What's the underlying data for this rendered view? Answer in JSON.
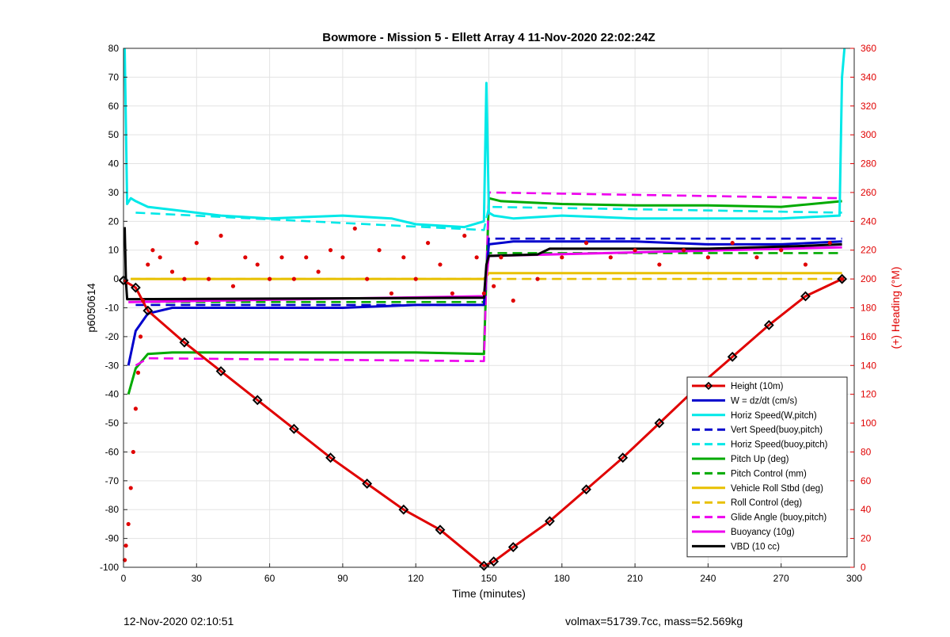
{
  "footer": {
    "timestamp": "12-Nov-2020 02:10:51",
    "vol_mass": "volmax=51739.7cc, mass=52.569kg"
  },
  "chart_data": {
    "type": "line",
    "title": "Bowmore - Mission 5 - Ellett Array 4 11-Nov-2020 22:02:24Z",
    "xlabel": "Time (minutes)",
    "ylabel": "p6050614",
    "y2label": "(+) Heading (°M)",
    "xlim": [
      0,
      300
    ],
    "ylim": [
      -100,
      80
    ],
    "y2lim": [
      0,
      360
    ],
    "xticks": [
      0,
      30,
      60,
      90,
      120,
      150,
      180,
      210,
      240,
      270,
      300
    ],
    "yticks": [
      -100,
      -90,
      -80,
      -70,
      -60,
      -50,
      -40,
      -30,
      -20,
      -10,
      0,
      10,
      20,
      30,
      40,
      50,
      60,
      70,
      80
    ],
    "y2ticks": [
      0,
      20,
      40,
      60,
      80,
      100,
      120,
      140,
      160,
      180,
      200,
      220,
      240,
      260,
      280,
      300,
      320,
      340,
      360
    ],
    "grid": true,
    "legend_position": "bottom-right",
    "series": [
      {
        "name": "Height (10m)",
        "color": "#e00000",
        "style": "solid-marker",
        "x": [
          0,
          5,
          10,
          25,
          40,
          55,
          70,
          85,
          100,
          115,
          130,
          148,
          152,
          160,
          175,
          190,
          205,
          220,
          235,
          250,
          265,
          280,
          295
        ],
        "y": [
          -0.5,
          -3,
          -11,
          -22,
          -32,
          -42,
          -52,
          -62,
          -71,
          -80,
          -87,
          -99.5,
          -98,
          -93,
          -84,
          -73,
          -62,
          -50,
          -38,
          -27,
          -16,
          -6,
          0
        ]
      },
      {
        "name": "W = dz/dt (cm/s)",
        "color": "#0000cc",
        "style": "solid",
        "x": [
          2,
          5,
          10,
          20,
          40,
          60,
          90,
          120,
          148,
          150,
          160,
          180,
          210,
          240,
          270,
          295
        ],
        "y": [
          -30,
          -18,
          -12,
          -10,
          -10,
          -10,
          -10,
          -9,
          -9,
          12,
          13,
          13,
          13,
          12,
          12,
          13
        ]
      },
      {
        "name": "Horiz Speed(W,pitch)",
        "color": "#00e8e8",
        "style": "solid",
        "x": [
          0.5,
          1.5,
          3,
          5,
          10,
          20,
          40,
          60,
          90,
          110,
          120,
          140,
          148,
          149,
          150,
          152,
          160,
          180,
          210,
          240,
          270,
          294,
          295,
          296
        ],
        "y": [
          80,
          26,
          28,
          27,
          25,
          24,
          22,
          21,
          22,
          21,
          19,
          18,
          20,
          68,
          23,
          22,
          21,
          22,
          21,
          21,
          21,
          22,
          70,
          80
        ]
      },
      {
        "name": "Vert Speed(buoy,pitch)",
        "color": "#0000cc",
        "style": "dashed",
        "x": [
          5,
          148,
          150,
          295
        ],
        "y": [
          -9,
          -9,
          14,
          14
        ]
      },
      {
        "name": "Horiz Speed(buoy,pitch)",
        "color": "#00e8e8",
        "style": "dashed",
        "x": [
          5,
          148,
          150,
          295
        ],
        "y": [
          23,
          17,
          25,
          23
        ]
      },
      {
        "name": "Pitch Up (deg)",
        "color": "#00aa00",
        "style": "solid",
        "x": [
          2,
          5,
          10,
          20,
          60,
          90,
          120,
          148,
          150,
          155,
          180,
          210,
          240,
          270,
          295
        ],
        "y": [
          -40,
          -31,
          -26,
          -25.5,
          -25.5,
          -25.5,
          -25.5,
          -26,
          28,
          27,
          26,
          25.5,
          25.5,
          25,
          27
        ]
      },
      {
        "name": "Pitch Control (mm)",
        "color": "#00aa00",
        "style": "dashed",
        "x": [
          5,
          148,
          150,
          295
        ],
        "y": [
          -8,
          -8,
          9,
          9
        ]
      },
      {
        "name": "Vehicle Roll Stbd (deg)",
        "color": "#e8c000",
        "style": "solid",
        "x": [
          3,
          10,
          30,
          60,
          90,
          120,
          148,
          150,
          180,
          210,
          240,
          270,
          295
        ],
        "y": [
          0,
          0,
          0,
          0,
          0,
          0,
          0,
          2,
          2,
          2,
          2,
          2,
          2
        ]
      },
      {
        "name": "Roll Control (deg)",
        "color": "#e8c000",
        "style": "dashed",
        "x": [
          3,
          10,
          30,
          60,
          90,
          120,
          148,
          150,
          180,
          210,
          240,
          270,
          295
        ],
        "y": [
          0,
          0,
          0,
          0,
          0,
          0,
          0,
          0,
          0,
          0,
          0,
          0,
          0
        ]
      },
      {
        "name": "Glide Angle (buoy,pitch)",
        "color": "#ee00ee",
        "style": "dashed",
        "x": [
          5,
          10,
          148,
          150,
          295
        ],
        "y": [
          -30,
          -27.5,
          -28.5,
          30,
          28
        ]
      },
      {
        "name": "Buoyancy (10g)",
        "color": "#ee00ee",
        "style": "solid",
        "x": [
          2,
          148,
          150,
          295
        ],
        "y": [
          -8,
          -6,
          8,
          11
        ]
      },
      {
        "name": "VBD (10 cc)",
        "color": "#000000",
        "style": "solid",
        "x": [
          0.5,
          1,
          1.5,
          148,
          149,
          150,
          170,
          175,
          230,
          240,
          260,
          280,
          295
        ],
        "y": [
          18,
          -1,
          -7,
          -6.5,
          5,
          8,
          8.5,
          10.5,
          10.5,
          10.5,
          11,
          11.5,
          12
        ]
      },
      {
        "name": "Heading",
        "color": "#e00000",
        "style": "dots",
        "axis": "right",
        "x": [
          0.5,
          1,
          2,
          3,
          4,
          5,
          6,
          7,
          8,
          10,
          12,
          15,
          20,
          25,
          30,
          35,
          40,
          45,
          50,
          55,
          60,
          65,
          70,
          75,
          80,
          85,
          90,
          95,
          100,
          105,
          110,
          115,
          120,
          125,
          130,
          135,
          140,
          145,
          148,
          152,
          155,
          160,
          170,
          180,
          190,
          200,
          210,
          220,
          230,
          240,
          250,
          260,
          270,
          280,
          290,
          295
        ],
        "y": [
          5,
          15,
          30,
          55,
          80,
          110,
          135,
          160,
          185,
          210,
          220,
          215,
          205,
          200,
          225,
          200,
          230,
          195,
          215,
          210,
          200,
          215,
          200,
          215,
          205,
          220,
          215,
          235,
          200,
          220,
          190,
          215,
          200,
          225,
          210,
          190,
          230,
          215,
          190,
          195,
          215,
          185,
          200,
          215,
          225,
          215,
          220,
          210,
          220,
          215,
          225,
          215,
          220,
          210,
          225,
          200
        ]
      }
    ]
  }
}
